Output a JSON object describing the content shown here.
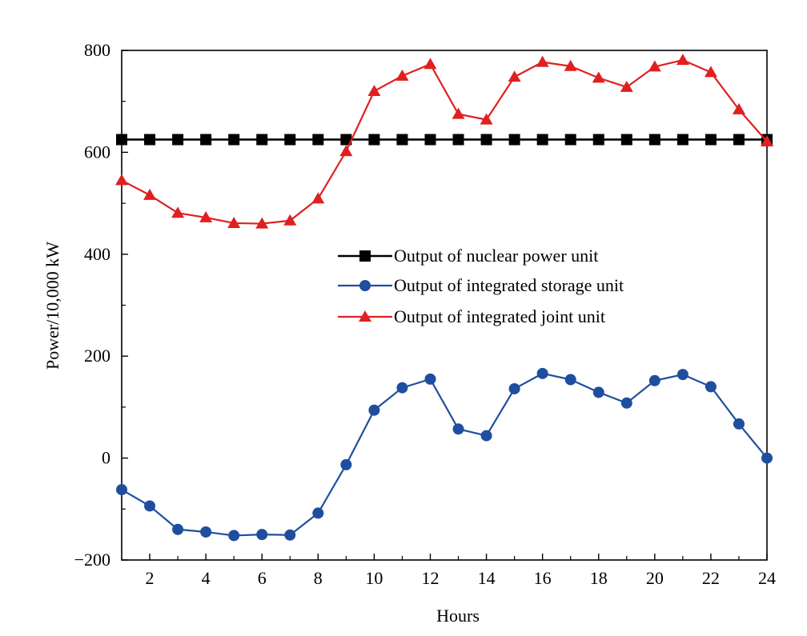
{
  "chart_data": {
    "type": "line",
    "title": "",
    "xlabel": "Hours",
    "ylabel": "Power/10,000 kW",
    "xlim": [
      1,
      24
    ],
    "ylim": [
      -200,
      800
    ],
    "x_ticks": [
      2,
      4,
      6,
      8,
      10,
      12,
      14,
      16,
      18,
      20,
      22,
      24
    ],
    "y_ticks": [
      -200,
      0,
      200,
      400,
      600,
      800
    ],
    "y_tick_labels": [
      "−200",
      "0",
      "200",
      "400",
      "600",
      "800"
    ],
    "grid": false,
    "legend_position": "center",
    "x": [
      1,
      2,
      3,
      4,
      5,
      6,
      7,
      8,
      9,
      10,
      11,
      12,
      13,
      14,
      15,
      16,
      17,
      18,
      19,
      20,
      21,
      22,
      23,
      24
    ],
    "series": [
      {
        "name": "Output of nuclear power unit",
        "color": "#000000",
        "marker": "square",
        "values": [
          625,
          625,
          625,
          625,
          625,
          625,
          625,
          625,
          625,
          625,
          625,
          625,
          625,
          625,
          625,
          625,
          625,
          625,
          625,
          625,
          625,
          625,
          625,
          625
        ]
      },
      {
        "name": "Output of integrated storage unit",
        "color": "#1f4e9e",
        "marker": "circle",
        "values": [
          -62,
          -94,
          -140,
          -145,
          -152,
          -150,
          -151,
          -108,
          -13,
          94,
          138,
          155,
          57,
          44,
          136,
          166,
          154,
          129,
          108,
          152,
          164,
          140,
          67,
          0
        ]
      },
      {
        "name": "Output of integrated joint unit",
        "color": "#e02020",
        "marker": "triangle",
        "values": [
          545,
          516,
          481,
          472,
          461,
          460,
          466,
          509,
          602,
          720,
          750,
          773,
          675,
          664,
          748,
          777,
          769,
          746,
          728,
          768,
          781,
          757,
          684,
          621
        ]
      }
    ]
  }
}
